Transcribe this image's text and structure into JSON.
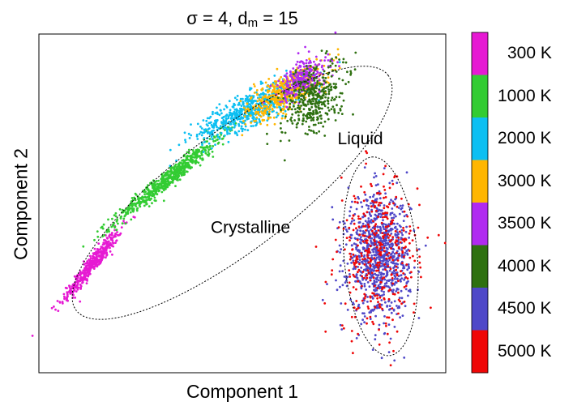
{
  "chart_data": {
    "type": "scatter",
    "title": "σ = 4, d",
    "title_sub": "m",
    "title_tail": " = 15",
    "xlabel": "Component 1",
    "ylabel": "Component 2",
    "x_ticks": [],
    "y_ticks": [],
    "xlim": [
      0,
      10
    ],
    "ylim": [
      0,
      8
    ],
    "annotations": [
      {
        "text": "Crystalline",
        "x": 5.2,
        "y": 3.3
      },
      {
        "text": "Liquid",
        "x": 7.9,
        "y": 5.4
      }
    ],
    "ellipses": [
      {
        "name": "crystalline-region",
        "cx": 4.75,
        "cy": 4.25,
        "rx": 4.8,
        "ry": 1.45,
        "angle_deg": 37
      },
      {
        "name": "liquid-region",
        "cx": 8.4,
        "cy": 2.75,
        "rx": 2.45,
        "ry": 0.9,
        "angle_deg": 95
      }
    ],
    "series": [
      {
        "name": "300 K",
        "color": "#e619d3",
        "center": [
          1.3,
          2.55
        ],
        "spread": [
          0.55,
          0.08
        ],
        "angle_deg": 50,
        "count": 420
      },
      {
        "name": "1000 K",
        "color": "#33cc33",
        "center": [
          3.2,
          4.6
        ],
        "spread": [
          0.85,
          0.09
        ],
        "angle_deg": 38,
        "count": 650
      },
      {
        "name": "2000 K",
        "color": "#0dbff2",
        "center": [
          5.25,
          6.25
        ],
        "spread": [
          0.75,
          0.18
        ],
        "angle_deg": 25,
        "count": 650
      },
      {
        "name": "3000 K",
        "color": "#ffb600",
        "center": [
          6.1,
          6.65
        ],
        "spread": [
          0.55,
          0.2
        ],
        "angle_deg": 30,
        "count": 480
      },
      {
        "name": "3500 K",
        "color": "#b02af0",
        "center": [
          6.5,
          6.95
        ],
        "spread": [
          0.35,
          0.2
        ],
        "angle_deg": 35,
        "count": 260
      },
      {
        "name": "4000 K",
        "color": "#2e7010",
        "center": [
          6.75,
          6.45
        ],
        "spread": [
          0.5,
          0.3
        ],
        "angle_deg": 45,
        "count": 380
      },
      {
        "name": "4500 K",
        "color": "#4f48c8",
        "center": [
          8.35,
          2.75
        ],
        "spread": [
          0.38,
          0.7
        ],
        "angle_deg": 0,
        "count": 950
      },
      {
        "name": "5000 K",
        "color": "#ef0707",
        "center": [
          8.35,
          2.75
        ],
        "spread": [
          0.5,
          0.9
        ],
        "angle_deg": 0,
        "count": 380
      }
    ],
    "colorbar": [
      {
        "label": "300 K",
        "color": "#e619d3"
      },
      {
        "label": "1000 K",
        "color": "#33cc33"
      },
      {
        "label": "2000 K",
        "color": "#0dbff2"
      },
      {
        "label": "3000 K",
        "color": "#ffb600"
      },
      {
        "label": "3500 K",
        "color": "#b02af0"
      },
      {
        "label": "4000 K",
        "color": "#2e7010"
      },
      {
        "label": "4500 K",
        "color": "#4f48c8"
      },
      {
        "label": "5000 K",
        "color": "#ef0707"
      }
    ],
    "grid": false,
    "legend": "colorbar-right"
  }
}
